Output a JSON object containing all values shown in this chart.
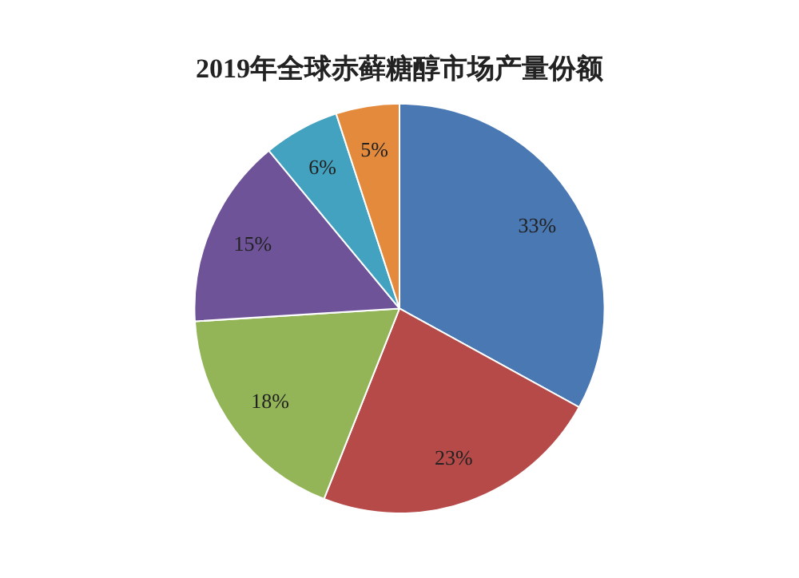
{
  "chart_data": {
    "type": "pie",
    "title": "2019年全球赤藓糖醇市场产量份额",
    "categories": [
      null,
      null,
      null,
      null,
      null,
      null
    ],
    "values": [
      33,
      23,
      18,
      15,
      6,
      5
    ],
    "value_labels": [
      "33%",
      "23%",
      "18%",
      "15%",
      "6%",
      "5%"
    ],
    "colors": [
      "#4a78b3",
      "#b54a48",
      "#93b558",
      "#6e5398",
      "#43a2bf",
      "#e48a3c"
    ]
  }
}
